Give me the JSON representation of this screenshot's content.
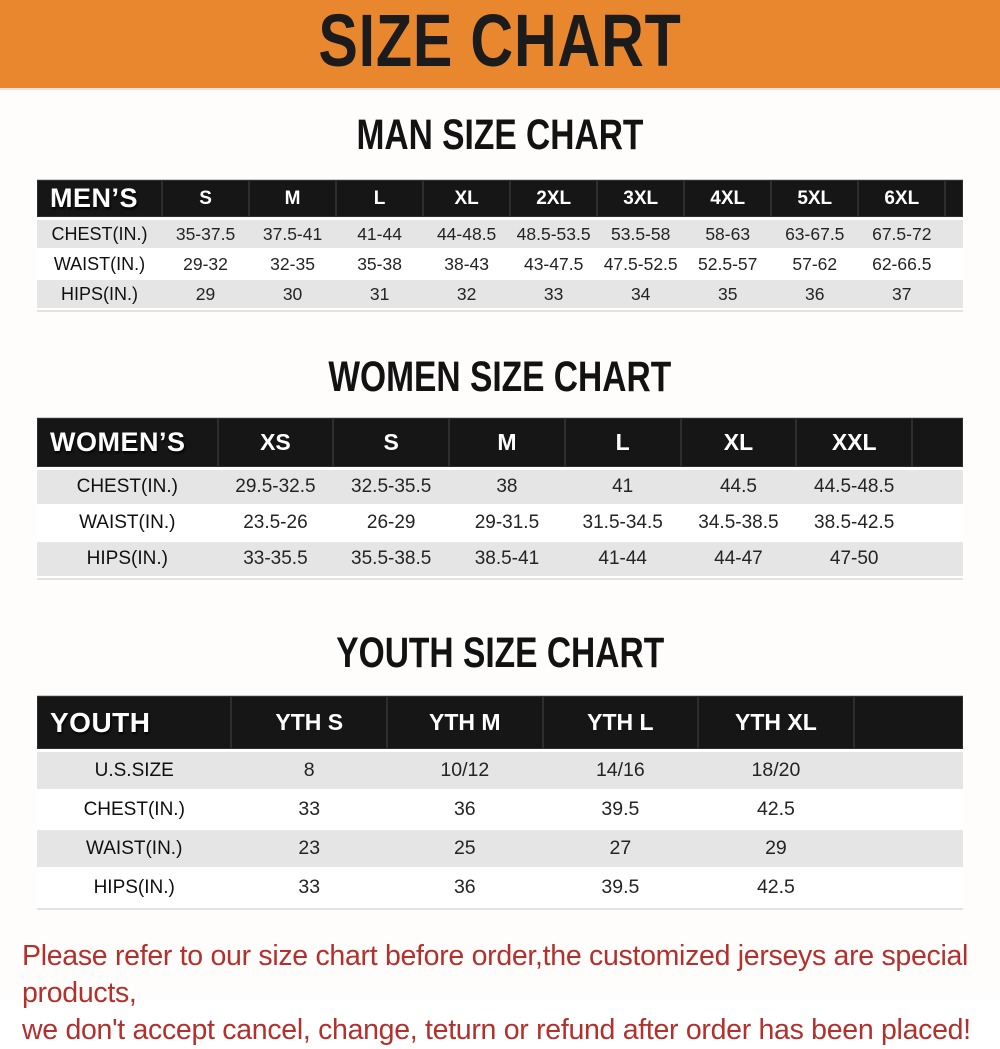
{
  "banner": {
    "title": "SIZE CHART"
  },
  "colors": {
    "banner_bg": "#e8872e",
    "header_bar": "#161616",
    "row_stripe": "#e5e5e5",
    "footer_text": "#b3302c"
  },
  "sections": [
    {
      "title": "MAN SIZE CHART",
      "header_label": "MEN’S",
      "columns": [
        "S",
        "M",
        "L",
        "XL",
        "2XL",
        "3XL",
        "4XL",
        "5XL",
        "6XL"
      ],
      "rows": [
        {
          "label": "CHEST(IN.)",
          "values": [
            "35-37.5",
            "37.5-41",
            "41-44",
            "44-48.5",
            "48.5-53.5",
            "53.5-58",
            "58-63",
            "63-67.5",
            "67.5-72"
          ]
        },
        {
          "label": "WAIST(IN.)",
          "values": [
            "29-32",
            "32-35",
            "35-38",
            "38-43",
            "43-47.5",
            "47.5-52.5",
            "52.5-57",
            "57-62",
            "62-66.5"
          ]
        },
        {
          "label": "HIPS(IN.)",
          "values": [
            "29",
            "30",
            "31",
            "32",
            "33",
            "34",
            "35",
            "36",
            "37"
          ]
        }
      ]
    },
    {
      "title": "WOMEN SIZE CHART",
      "header_label": "WOMEN’S",
      "columns": [
        "XS",
        "S",
        "M",
        "L",
        "XL",
        "XXL"
      ],
      "rows": [
        {
          "label": "CHEST(IN.)",
          "values": [
            "29.5-32.5",
            "32.5-35.5",
            "38",
            "41",
            "44.5",
            "44.5-48.5"
          ]
        },
        {
          "label": "WAIST(IN.)",
          "values": [
            "23.5-26",
            "26-29",
            "29-31.5",
            "31.5-34.5",
            "34.5-38.5",
            "38.5-42.5"
          ]
        },
        {
          "label": "HIPS(IN.)",
          "values": [
            "33-35.5",
            "35.5-38.5",
            "38.5-41",
            "41-44",
            "44-47",
            "47-50"
          ]
        }
      ]
    },
    {
      "title": "YOUTH SIZE CHART",
      "header_label": "YOUTH",
      "columns": [
        "YTH S",
        "YTH M",
        "YTH L",
        "YTH XL"
      ],
      "rows": [
        {
          "label": "U.S.SIZE",
          "values": [
            "8",
            "10/12",
            "14/16",
            "18/20"
          ]
        },
        {
          "label": "CHEST(IN.)",
          "values": [
            "33",
            "36",
            "39.5",
            "42.5"
          ]
        },
        {
          "label": "WAIST(IN.)",
          "values": [
            "23",
            "25",
            "27",
            "29"
          ]
        },
        {
          "label": "HIPS(IN.)",
          "values": [
            "33",
            "36",
            "39.5",
            "42.5"
          ]
        }
      ]
    }
  ],
  "footer": {
    "line1": "Please refer to our size chart before order,the customized jerseys are special products,",
    "line2": "we don't accept cancel, change, teturn or refund after order has been placed!"
  }
}
